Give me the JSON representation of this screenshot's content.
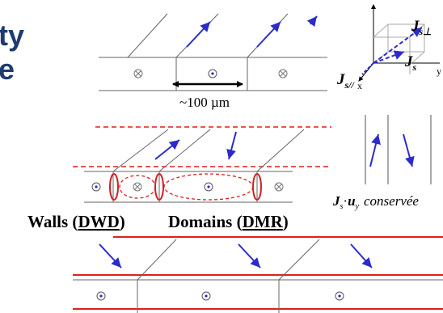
{
  "title_fragments": {
    "line1": "ty",
    "line2": "e"
  },
  "top_panel": {
    "scale_label": "~100 µm"
  },
  "axes": {
    "x_label": "x",
    "y_label": "y",
    "j_par_main": "J",
    "j_par_sub": "s//",
    "j_s_main": "J",
    "j_s_sub": "s",
    "j_perp_main": "J",
    "j_perp_sub": "s⊥"
  },
  "middle_panel": {
    "walls_label": "Walls (",
    "walls_abbr": "DWD",
    "domains_label": "Domains (",
    "domains_abbr": "DMR",
    "close_paren": ")"
  },
  "conservation": {
    "j_main": "J",
    "j_sub": "s",
    "dot": "·",
    "u_main": "u",
    "u_sub": "y",
    "text": "conservée"
  },
  "colors": {
    "title": "#1f3b73",
    "arrow": "#2b2bcc",
    "red": "#e01e1e",
    "wall_red": "#cc2222",
    "line": "#666666",
    "dark_line": "#333333"
  }
}
